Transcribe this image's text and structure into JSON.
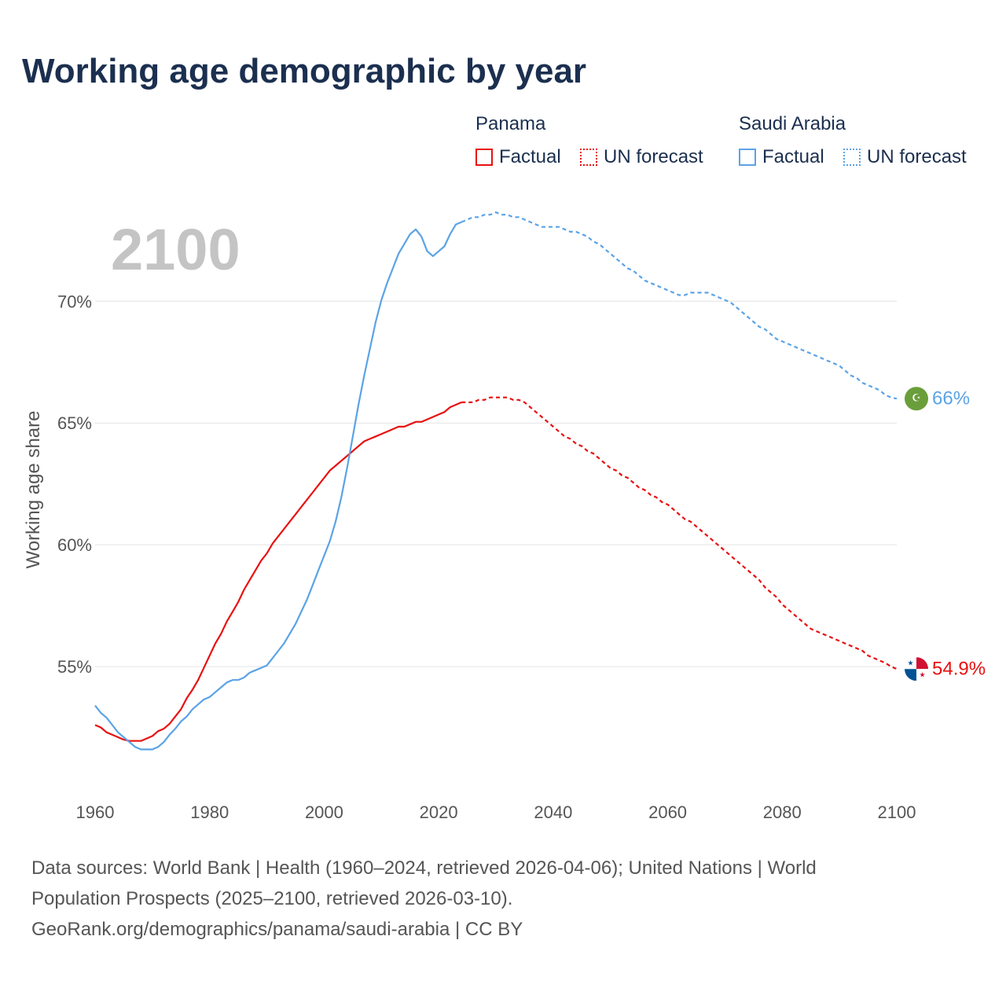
{
  "title": "Working age demographic by year",
  "year_label": "2100",
  "legend": {
    "panama": {
      "name": "Panama",
      "factual": "Factual",
      "forecast": "UN forecast",
      "color": "#e81010"
    },
    "saudi": {
      "name": "Saudi Arabia",
      "factual": "Factual",
      "forecast": "UN forecast",
      "color": "#5ba3e6"
    }
  },
  "footer": {
    "line1": "Data sources: World Bank | Health (1960–2024, retrieved 2026-04-06); United Nations | World",
    "line2": "Population Prospects (2025–2100, retrieved 2026-03-10).",
    "line3": "GeoRank.org/demographics/panama/saudi-arabia | CC BY"
  },
  "end_labels": {
    "saudi": "66%",
    "panama": "54.9%"
  },
  "chart_data": {
    "type": "line",
    "title": "Working age demographic by year",
    "xlabel": "",
    "ylabel": "Working age share",
    "xlim": [
      1960,
      2100
    ],
    "ylim": [
      50.1,
      74.3
    ],
    "x_ticks": [
      1960,
      1980,
      2000,
      2020,
      2040,
      2060,
      2080,
      2100
    ],
    "x_tick_labels": [
      "1960",
      "1980",
      "2000",
      "2020",
      "2040",
      "2060",
      "2080",
      "2100"
    ],
    "y_ticks": [
      55,
      60,
      65,
      70
    ],
    "y_tick_labels": [
      "55%",
      "60%",
      "65%",
      "70%"
    ],
    "grid": true,
    "series": [
      {
        "name": "Panama",
        "color": "#e81010",
        "factual": {
          "x": [
            1960,
            1961,
            1962,
            1963,
            1964,
            1965,
            1966,
            1967,
            1968,
            1969,
            1970,
            1971,
            1972,
            1973,
            1974,
            1975,
            1976,
            1977,
            1978,
            1979,
            1980,
            1981,
            1982,
            1983,
            1984,
            1985,
            1986,
            1987,
            1988,
            1989,
            1990,
            1991,
            1992,
            1993,
            1994,
            1995,
            1996,
            1997,
            1998,
            1999,
            2000,
            2001,
            2002,
            2003,
            2004,
            2005,
            2006,
            2007,
            2008,
            2009,
            2010,
            2011,
            2012,
            2013,
            2014,
            2015,
            2016,
            2017,
            2018,
            2019,
            2020,
            2021,
            2022,
            2023,
            2024
          ],
          "y": [
            52.6,
            52.5,
            52.3,
            52.2,
            52.1,
            52.0,
            51.95,
            51.95,
            51.95,
            52.05,
            52.15,
            52.35,
            52.45,
            52.65,
            52.95,
            53.25,
            53.7,
            54.05,
            54.45,
            54.95,
            55.45,
            55.95,
            56.35,
            56.85,
            57.25,
            57.65,
            58.15,
            58.55,
            58.95,
            59.35,
            59.65,
            60.05,
            60.35,
            60.65,
            60.95,
            61.25,
            61.55,
            61.85,
            62.15,
            62.45,
            62.75,
            63.05,
            63.25,
            63.45,
            63.65,
            63.85,
            64.05,
            64.25,
            64.35,
            64.45,
            64.55,
            64.65,
            64.75,
            64.85,
            64.85,
            64.95,
            65.05,
            65.05,
            65.15,
            65.25,
            65.35,
            65.45,
            65.65,
            65.75,
            65.85
          ]
        },
        "forecast": {
          "x": [
            2024,
            2025,
            2026,
            2027,
            2028,
            2029,
            2030,
            2031,
            2032,
            2033,
            2034,
            2035,
            2036,
            2037,
            2038,
            2039,
            2040,
            2041,
            2042,
            2043,
            2044,
            2045,
            2046,
            2047,
            2048,
            2049,
            2050,
            2051,
            2052,
            2053,
            2054,
            2055,
            2056,
            2057,
            2058,
            2059,
            2060,
            2061,
            2062,
            2063,
            2064,
            2065,
            2066,
            2067,
            2068,
            2069,
            2070,
            2071,
            2072,
            2073,
            2074,
            2075,
            2076,
            2077,
            2078,
            2079,
            2080,
            2081,
            2082,
            2083,
            2084,
            2085,
            2086,
            2087,
            2088,
            2089,
            2090,
            2091,
            2092,
            2093,
            2094,
            2095,
            2096,
            2097,
            2098,
            2099,
            2100
          ],
          "y": [
            65.85,
            65.85,
            65.85,
            65.95,
            65.95,
            66.05,
            66.05,
            66.05,
            66.05,
            65.95,
            65.95,
            65.85,
            65.65,
            65.45,
            65.25,
            65.05,
            64.85,
            64.65,
            64.45,
            64.35,
            64.15,
            64.05,
            63.85,
            63.75,
            63.55,
            63.35,
            63.15,
            63.05,
            62.85,
            62.75,
            62.55,
            62.35,
            62.25,
            62.05,
            61.95,
            61.75,
            61.65,
            61.45,
            61.25,
            61.05,
            60.95,
            60.75,
            60.55,
            60.35,
            60.15,
            59.95,
            59.75,
            59.55,
            59.35,
            59.15,
            58.95,
            58.75,
            58.55,
            58.25,
            58.05,
            57.85,
            57.55,
            57.35,
            57.15,
            56.95,
            56.75,
            56.55,
            56.45,
            56.35,
            56.25,
            56.15,
            56.05,
            55.95,
            55.85,
            55.75,
            55.65,
            55.45,
            55.35,
            55.25,
            55.15,
            55.0,
            54.9
          ]
        },
        "end_value": 54.9
      },
      {
        "name": "Saudi Arabia",
        "color": "#5ba3e6",
        "factual": {
          "x": [
            1960,
            1961,
            1962,
            1963,
            1964,
            1965,
            1966,
            1967,
            1968,
            1969,
            1970,
            1971,
            1972,
            1973,
            1974,
            1975,
            1976,
            1977,
            1978,
            1979,
            1980,
            1981,
            1982,
            1983,
            1984,
            1985,
            1986,
            1987,
            1988,
            1989,
            1990,
            1991,
            1992,
            1993,
            1994,
            1995,
            1996,
            1997,
            1998,
            1999,
            2000,
            2001,
            2002,
            2003,
            2004,
            2005,
            2006,
            2007,
            2008,
            2009,
            2010,
            2011,
            2012,
            2013,
            2014,
            2015,
            2016,
            2017,
            2018,
            2019,
            2020,
            2021,
            2022,
            2023,
            2024
          ],
          "y": [
            53.4,
            53.1,
            52.9,
            52.6,
            52.3,
            52.1,
            51.9,
            51.7,
            51.6,
            51.6,
            51.6,
            51.7,
            51.9,
            52.2,
            52.45,
            52.75,
            52.95,
            53.25,
            53.45,
            53.65,
            53.75,
            53.95,
            54.15,
            54.35,
            54.45,
            54.45,
            54.55,
            54.75,
            54.85,
            54.95,
            55.05,
            55.35,
            55.65,
            55.95,
            56.35,
            56.75,
            57.25,
            57.75,
            58.35,
            58.95,
            59.55,
            60.15,
            60.95,
            61.95,
            63.15,
            64.45,
            65.75,
            66.95,
            68.05,
            69.15,
            70.05,
            70.75,
            71.35,
            71.95,
            72.35,
            72.75,
            72.95,
            72.65,
            72.05,
            71.85,
            72.05,
            72.25,
            72.75,
            73.15,
            73.25
          ]
        },
        "forecast": {
          "x": [
            2024,
            2025,
            2026,
            2027,
            2028,
            2029,
            2030,
            2031,
            2032,
            2033,
            2034,
            2035,
            2036,
            2037,
            2038,
            2039,
            2040,
            2041,
            2042,
            2043,
            2044,
            2045,
            2046,
            2047,
            2048,
            2049,
            2050,
            2051,
            2052,
            2053,
            2054,
            2055,
            2056,
            2057,
            2058,
            2059,
            2060,
            2061,
            2062,
            2063,
            2064,
            2065,
            2066,
            2067,
            2068,
            2069,
            2070,
            2071,
            2072,
            2073,
            2074,
            2075,
            2076,
            2077,
            2078,
            2079,
            2080,
            2081,
            2082,
            2083,
            2084,
            2085,
            2086,
            2087,
            2088,
            2089,
            2090,
            2091,
            2092,
            2093,
            2094,
            2095,
            2096,
            2097,
            2098,
            2099,
            2100
          ],
          "y": [
            73.25,
            73.35,
            73.45,
            73.45,
            73.55,
            73.55,
            73.65,
            73.55,
            73.55,
            73.45,
            73.45,
            73.35,
            73.25,
            73.15,
            73.05,
            73.05,
            73.05,
            73.05,
            72.95,
            72.85,
            72.85,
            72.75,
            72.65,
            72.45,
            72.35,
            72.15,
            71.95,
            71.75,
            71.55,
            71.35,
            71.25,
            71.05,
            70.85,
            70.75,
            70.65,
            70.55,
            70.45,
            70.35,
            70.25,
            70.25,
            70.35,
            70.35,
            70.35,
            70.35,
            70.25,
            70.15,
            70.05,
            69.95,
            69.75,
            69.55,
            69.35,
            69.15,
            68.95,
            68.85,
            68.65,
            68.45,
            68.35,
            68.25,
            68.15,
            68.05,
            67.95,
            67.85,
            67.75,
            67.65,
            67.55,
            67.45,
            67.35,
            67.15,
            66.95,
            66.85,
            66.65,
            66.55,
            66.45,
            66.35,
            66.15,
            66.05,
            66.0
          ]
        },
        "end_value": 66.0
      }
    ]
  }
}
